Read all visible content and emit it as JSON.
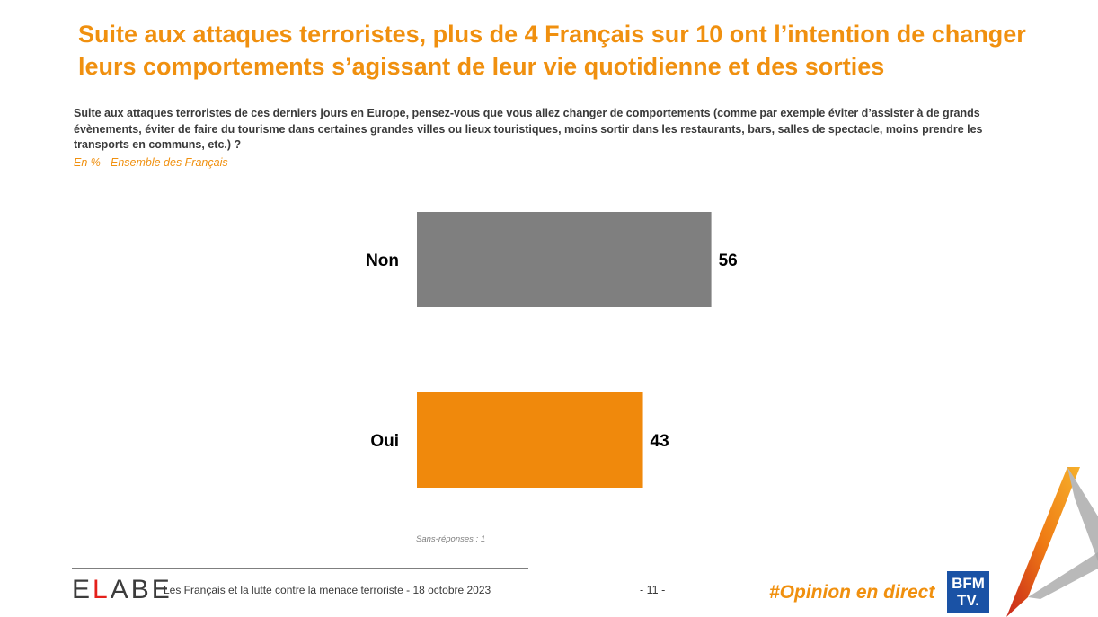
{
  "header": {
    "title": "Suite aux attaques terroristes, plus de 4 Français sur 10 ont l’intention de changer leurs comportements s’agissant de leur vie quotidienne et des sorties",
    "question": "Suite aux attaques terroristes de ces derniers jours en Europe, pensez-vous que vous allez changer de comportements (comme par exemple éviter d’assister à de grands évènements, éviter de faire du tourisme dans certaines grandes villes ou lieux touristiques, moins sortir dans les restaurants, bars, salles de spectacle, moins prendre les transports en communs, etc.) ?",
    "base": "En % - Ensemble des Français"
  },
  "chart_data": {
    "type": "bar",
    "orientation": "horizontal",
    "categories": [
      "Non",
      "Oui"
    ],
    "values": [
      56,
      43
    ],
    "colors": [
      "#7f7f7f",
      "#f0890c"
    ],
    "unit": "%",
    "note": "Sans-réponses : 1"
  },
  "footer": {
    "logo_start": "E",
    "logo_l": "L",
    "logo_end": "ABE",
    "text": "Les Français et la lutte contre la menace terroriste - 18 octobre 2023",
    "page": "- 11 -",
    "hashtag": "#Opinion en direct",
    "bfm_line1": "BFM",
    "bfm_line2": "TV."
  },
  "colors": {
    "accent": "#f0900f",
    "logo_red": "#e4201b",
    "bfm_blue": "#1a52a5"
  }
}
